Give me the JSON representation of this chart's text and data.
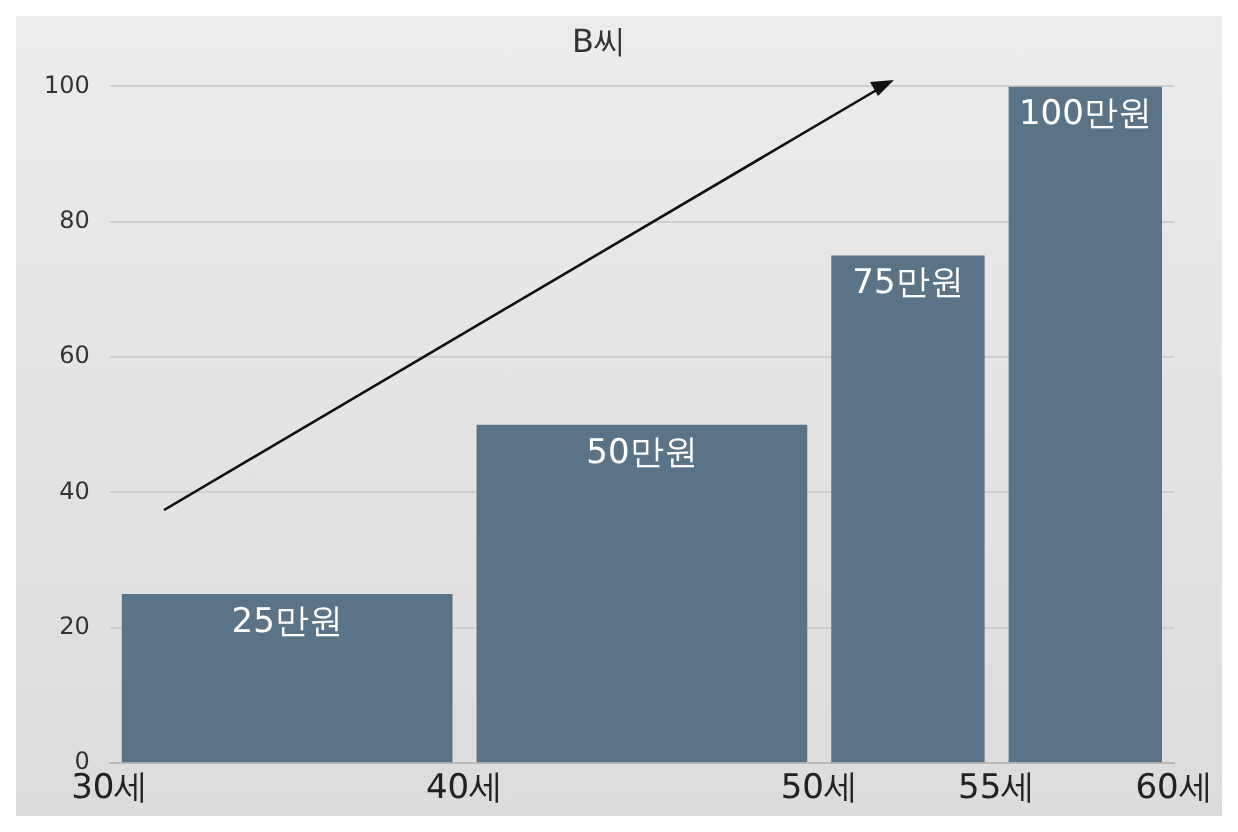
{
  "chart_data": {
    "type": "histogram",
    "title": "B씨",
    "bins": [
      30,
      40,
      50,
      55,
      60
    ],
    "values": [
      25,
      50,
      75,
      100
    ],
    "value_labels": [
      "25만원",
      "50만원",
      "75만원",
      "100만원"
    ],
    "color": "#5b7386",
    "xlim": [
      30,
      60
    ],
    "xticks": [
      {
        "value": 30,
        "label": "30세"
      },
      {
        "value": 40,
        "label": "40세"
      },
      {
        "value": 50,
        "label": "50세"
      },
      {
        "value": 55,
        "label": "55세"
      },
      {
        "value": 60,
        "label": "60세"
      }
    ],
    "ylim": [
      0,
      100
    ],
    "yticks": [
      0,
      20,
      40,
      60,
      80,
      100
    ],
    "grid": "y",
    "legend": false
  }
}
